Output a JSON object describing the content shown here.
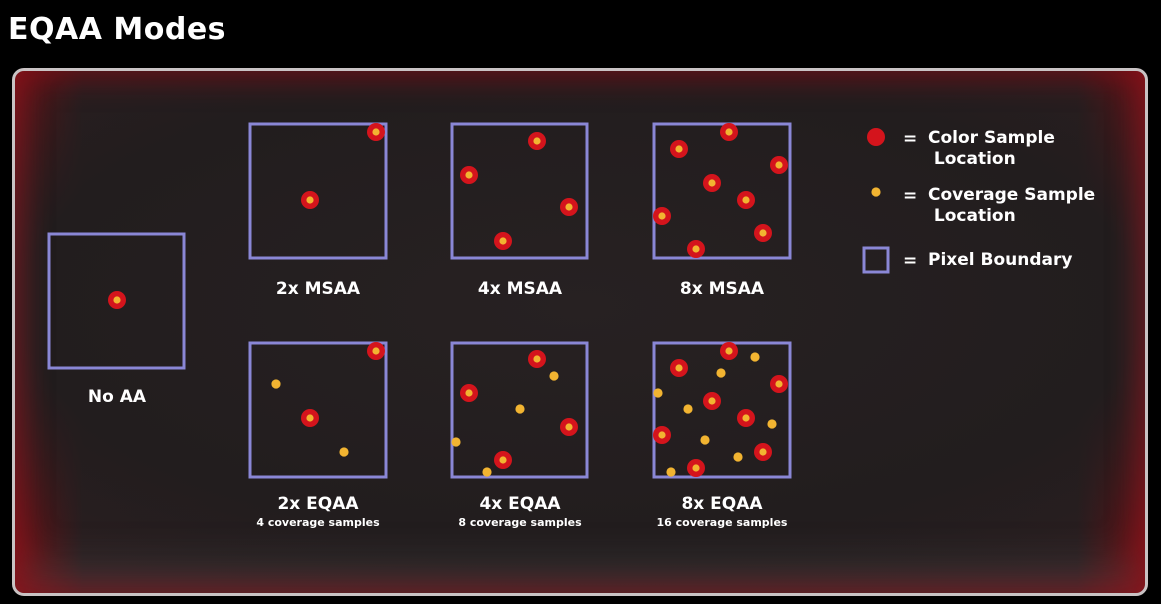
{
  "title": "EQAA Modes",
  "legend": {
    "color_sample": "Color Sample\n Location",
    "coverage_sample": "Coverage Sample\n Location",
    "pixel_boundary": "Pixel Boundary",
    "equals": "="
  },
  "modes": {
    "no_aa": {
      "label": "No AA"
    },
    "msaa_2x": {
      "label": "2x MSAA"
    },
    "msaa_4x": {
      "label": "4x MSAA"
    },
    "msaa_8x": {
      "label": "8x MSAA"
    },
    "eqaa_2x": {
      "label": "2x EQAA",
      "sublabel": "4 coverage samples"
    },
    "eqaa_4x": {
      "label": "4x EQAA",
      "sublabel": "8 coverage samples"
    },
    "eqaa_8x": {
      "label": "8x EQAA",
      "sublabel": "16 coverage samples"
    }
  },
  "colors": {
    "pixel_border": "#8a87d6",
    "color_sample_outer": "#d4141c",
    "coverage_sample": "#f2b431",
    "panel_bg": "#231e1f"
  }
}
